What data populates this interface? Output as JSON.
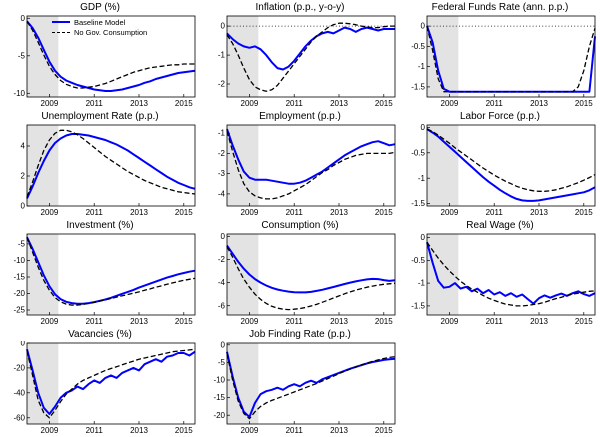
{
  "styles": {
    "baseline_color": "#0000ff",
    "counterfactual_color": "#000000",
    "band_color": "#e3e3e3",
    "axis_color": "#000000"
  },
  "legend": {
    "entries": [
      {
        "label": "Baseline Model",
        "color": "#0000ff",
        "dash": "solid"
      },
      {
        "label": "No Gov. Consumption",
        "color": "#000000",
        "dash": "dashed"
      }
    ]
  },
  "x_axis": {
    "lim": [
      2008,
      2015.5
    ],
    "ticks": [
      2009,
      2011,
      2013,
      2015
    ]
  },
  "x_quarters": [
    2008,
    2008.25,
    2008.5,
    2008.75,
    2009,
    2009.25,
    2009.5,
    2009.75,
    2010,
    2010.25,
    2010.5,
    2010.75,
    2011,
    2011.25,
    2011.5,
    2011.75,
    2012,
    2012.25,
    2012.5,
    2012.75,
    2013,
    2013.25,
    2013.5,
    2013.75,
    2014,
    2014.25,
    2014.5,
    2014.75,
    2015,
    2015.25,
    2015.5
  ],
  "chart_data": [
    {
      "type": "line",
      "id": "gdp",
      "title": "GDP (%)",
      "ylim": [
        -10.5,
        0.3
      ],
      "yticks": [
        0,
        -5,
        -10
      ],
      "zero_line": false,
      "recession_band": [
        2008,
        2009.4
      ],
      "has_legend": true,
      "series": [
        {
          "name": "Baseline Model",
          "values": [
            -0.4,
            -1.3,
            -2.6,
            -4.2,
            -5.8,
            -7.0,
            -7.8,
            -8.3,
            -8.6,
            -8.9,
            -9.1,
            -9.3,
            -9.5,
            -9.6,
            -9.7,
            -9.7,
            -9.6,
            -9.5,
            -9.3,
            -9.1,
            -8.9,
            -8.6,
            -8.4,
            -8.1,
            -7.9,
            -7.7,
            -7.5,
            -7.3,
            -7.2,
            -7.1,
            -7.0
          ]
        },
        {
          "name": "No Gov. Consumption",
          "values": [
            -0.4,
            -1.6,
            -3.2,
            -4.9,
            -6.4,
            -7.5,
            -8.3,
            -8.8,
            -9.1,
            -9.3,
            -9.3,
            -9.2,
            -9.1,
            -8.9,
            -8.7,
            -8.4,
            -8.1,
            -7.8,
            -7.5,
            -7.2,
            -7.0,
            -6.8,
            -6.6,
            -6.5,
            -6.4,
            -6.3,
            -6.2,
            -6.2,
            -6.1,
            -6.1,
            -6.1
          ]
        }
      ]
    },
    {
      "type": "line",
      "id": "inflation",
      "title": "Inflation (p.p., y-o-y)",
      "ylim": [
        -2.45,
        0.35
      ],
      "yticks": [
        0,
        -1,
        -2
      ],
      "zero_line": true,
      "recession_band": [
        2008,
        2009.4
      ],
      "has_legend": false,
      "series": [
        {
          "name": "Baseline Model",
          "values": [
            -0.25,
            -0.45,
            -0.6,
            -0.7,
            -0.75,
            -0.7,
            -0.8,
            -1.0,
            -1.25,
            -1.45,
            -1.5,
            -1.4,
            -1.2,
            -0.95,
            -0.7,
            -0.5,
            -0.35,
            -0.25,
            -0.2,
            -0.25,
            -0.15,
            -0.05,
            -0.1,
            -0.2,
            -0.1,
            -0.05,
            -0.1,
            -0.15,
            -0.1,
            -0.1,
            -0.1
          ]
        },
        {
          "name": "No Gov. Consumption",
          "values": [
            -0.3,
            -0.6,
            -1.0,
            -1.45,
            -1.85,
            -2.1,
            -2.2,
            -2.25,
            -2.2,
            -2.05,
            -1.8,
            -1.55,
            -1.3,
            -1.05,
            -0.8,
            -0.55,
            -0.35,
            -0.2,
            -0.05,
            0.05,
            0.1,
            0.1,
            0.08,
            0.05,
            0.0,
            -0.03,
            -0.05,
            -0.05,
            -0.02,
            0.0,
            0.0
          ]
        }
      ]
    },
    {
      "type": "line",
      "id": "federal-funds-rate",
      "title": "Federal Funds Rate (ann. p.p.)",
      "ylim": [
        -1.75,
        0.25
      ],
      "yticks": [
        0,
        -0.5,
        -1,
        -1.5
      ],
      "zero_line": true,
      "recession_band": [
        2008,
        2009.4
      ],
      "has_legend": false,
      "series": [
        {
          "name": "Baseline Model",
          "values": [
            0,
            -0.4,
            -1.1,
            -1.55,
            -1.62,
            -1.62,
            -1.62,
            -1.62,
            -1.62,
            -1.62,
            -1.62,
            -1.62,
            -1.62,
            -1.62,
            -1.62,
            -1.62,
            -1.62,
            -1.62,
            -1.62,
            -1.62,
            -1.62,
            -1.62,
            -1.62,
            -1.62,
            -1.62,
            -1.62,
            -1.62,
            -1.62,
            -1.62,
            -1.62,
            -0.25
          ]
        },
        {
          "name": "No Gov. Consumption",
          "values": [
            0,
            -0.6,
            -1.3,
            -1.62,
            -1.62,
            -1.62,
            -1.62,
            -1.62,
            -1.62,
            -1.62,
            -1.62,
            -1.62,
            -1.62,
            -1.62,
            -1.62,
            -1.62,
            -1.62,
            -1.62,
            -1.62,
            -1.62,
            -1.62,
            -1.62,
            -1.62,
            -1.62,
            -1.62,
            -1.62,
            -1.62,
            -1.5,
            -1.1,
            -0.5,
            -0.05
          ]
        }
      ]
    },
    {
      "type": "line",
      "id": "unemployment-rate",
      "title": "Unemployment Rate (p.p.)",
      "ylim": [
        0,
        5.4
      ],
      "yticks": [
        0,
        2,
        4
      ],
      "zero_line": false,
      "recession_band": [
        2008,
        2009.4
      ],
      "has_legend": false,
      "series": [
        {
          "name": "Baseline Model",
          "values": [
            0.5,
            1.3,
            2.2,
            3.0,
            3.7,
            4.2,
            4.5,
            4.7,
            4.8,
            4.8,
            4.75,
            4.7,
            4.6,
            4.5,
            4.4,
            4.25,
            4.1,
            3.9,
            3.7,
            3.45,
            3.2,
            2.95,
            2.7,
            2.45,
            2.2,
            1.95,
            1.75,
            1.55,
            1.4,
            1.25,
            1.15
          ]
        },
        {
          "name": "No Gov. Consumption",
          "values": [
            0.6,
            1.6,
            2.7,
            3.7,
            4.4,
            4.85,
            5.05,
            5.05,
            4.95,
            4.75,
            4.5,
            4.2,
            3.9,
            3.6,
            3.3,
            3.05,
            2.8,
            2.55,
            2.3,
            2.1,
            1.9,
            1.7,
            1.55,
            1.4,
            1.25,
            1.15,
            1.05,
            0.95,
            0.9,
            0.85,
            0.8
          ]
        }
      ]
    },
    {
      "type": "line",
      "id": "employment",
      "title": "Employment (p.p.)",
      "ylim": [
        -4.6,
        -0.6
      ],
      "yticks": [
        -1,
        -2,
        -3,
        -4
      ],
      "zero_line": false,
      "recession_band": [
        2008,
        2009.4
      ],
      "has_legend": false,
      "series": [
        {
          "name": "Baseline Model",
          "values": [
            -0.8,
            -1.6,
            -2.3,
            -2.9,
            -3.2,
            -3.3,
            -3.3,
            -3.3,
            -3.35,
            -3.4,
            -3.45,
            -3.5,
            -3.5,
            -3.45,
            -3.35,
            -3.2,
            -3.05,
            -2.9,
            -2.7,
            -2.5,
            -2.3,
            -2.1,
            -1.95,
            -1.8,
            -1.65,
            -1.55,
            -1.45,
            -1.4,
            -1.5,
            -1.6,
            -1.55
          ]
        },
        {
          "name": "No Gov. Consumption",
          "values": [
            -0.9,
            -1.9,
            -2.8,
            -3.5,
            -3.9,
            -4.1,
            -4.2,
            -4.25,
            -4.25,
            -4.2,
            -4.1,
            -4.0,
            -3.85,
            -3.7,
            -3.55,
            -3.35,
            -3.15,
            -2.95,
            -2.8,
            -2.6,
            -2.45,
            -2.3,
            -2.2,
            -2.1,
            -2.05,
            -2.0,
            -2.0,
            -2.0,
            -2.0,
            -2.0,
            -1.95
          ]
        }
      ]
    },
    {
      "type": "line",
      "id": "labor-force",
      "title": "Labor Force (p.p.)",
      "ylim": [
        -1.55,
        0.05
      ],
      "yticks": [
        0,
        -0.5,
        -1,
        -1.5
      ],
      "zero_line": false,
      "recession_band": [
        2008,
        2009.4
      ],
      "has_legend": false,
      "series": [
        {
          "name": "Baseline Model",
          "values": [
            -0.03,
            -0.1,
            -0.18,
            -0.28,
            -0.38,
            -0.48,
            -0.58,
            -0.68,
            -0.78,
            -0.88,
            -0.98,
            -1.07,
            -1.15,
            -1.23,
            -1.3,
            -1.36,
            -1.41,
            -1.44,
            -1.45,
            -1.45,
            -1.44,
            -1.42,
            -1.4,
            -1.38,
            -1.36,
            -1.34,
            -1.32,
            -1.3,
            -1.28,
            -1.24,
            -1.18
          ]
        },
        {
          "name": "No Gov. Consumption",
          "values": [
            -0.03,
            -0.08,
            -0.15,
            -0.23,
            -0.31,
            -0.4,
            -0.48,
            -0.56,
            -0.64,
            -0.72,
            -0.8,
            -0.87,
            -0.94,
            -1.0,
            -1.06,
            -1.11,
            -1.16,
            -1.2,
            -1.23,
            -1.25,
            -1.26,
            -1.26,
            -1.25,
            -1.23,
            -1.2,
            -1.17,
            -1.13,
            -1.09,
            -1.04,
            -0.99,
            -0.93
          ]
        }
      ]
    },
    {
      "type": "line",
      "id": "investment",
      "title": "Investment (%)",
      "ylim": [
        -26.5,
        -2
      ],
      "yticks": [
        -5,
        -10,
        -15,
        -20,
        -25
      ],
      "zero_line": false,
      "recession_band": [
        2008,
        2009.4
      ],
      "has_legend": false,
      "series": [
        {
          "name": "Baseline Model",
          "values": [
            -3,
            -6.5,
            -10.5,
            -14.5,
            -17.8,
            -20.2,
            -21.7,
            -22.5,
            -22.9,
            -23.1,
            -23.1,
            -22.9,
            -22.6,
            -22.2,
            -21.8,
            -21.3,
            -20.7,
            -20.1,
            -19.5,
            -18.9,
            -18.2,
            -17.6,
            -17.0,
            -16.4,
            -15.8,
            -15.2,
            -14.7,
            -14.2,
            -13.8,
            -13.4,
            -13.1
          ]
        },
        {
          "name": "No Gov. Consumption",
          "values": [
            -3,
            -7.5,
            -12,
            -16,
            -19,
            -21.2,
            -22.5,
            -23.2,
            -23.5,
            -23.5,
            -23.3,
            -23.0,
            -22.7,
            -22.3,
            -21.9,
            -21.5,
            -21.1,
            -20.7,
            -20.3,
            -19.9,
            -19.5,
            -19.0,
            -18.6,
            -18.1,
            -17.7,
            -17.2,
            -16.8,
            -16.4,
            -16.0,
            -15.7,
            -15.4
          ]
        }
      ]
    },
    {
      "type": "line",
      "id": "consumption",
      "title": "Consumption (%)",
      "ylim": [
        -6.8,
        0.2
      ],
      "yticks": [
        0,
        -2,
        -4,
        -6
      ],
      "zero_line": false,
      "recession_band": [
        2008,
        2009.4
      ],
      "has_legend": false,
      "series": [
        {
          "name": "Baseline Model",
          "values": [
            -0.8,
            -1.5,
            -2.2,
            -2.8,
            -3.3,
            -3.7,
            -4.0,
            -4.25,
            -4.45,
            -4.6,
            -4.7,
            -4.78,
            -4.83,
            -4.85,
            -4.85,
            -4.8,
            -4.72,
            -4.62,
            -4.5,
            -4.38,
            -4.25,
            -4.12,
            -4.0,
            -3.9,
            -3.8,
            -3.72,
            -3.68,
            -3.7,
            -3.78,
            -3.85,
            -3.8
          ]
        },
        {
          "name": "No Gov. Consumption",
          "values": [
            -0.9,
            -1.8,
            -2.8,
            -3.7,
            -4.4,
            -5.0,
            -5.45,
            -5.8,
            -6.05,
            -6.2,
            -6.3,
            -6.33,
            -6.3,
            -6.25,
            -6.15,
            -6.02,
            -5.88,
            -5.7,
            -5.52,
            -5.33,
            -5.15,
            -4.97,
            -4.8,
            -4.65,
            -4.52,
            -4.4,
            -4.3,
            -4.22,
            -4.15,
            -4.1,
            -4.05
          ]
        }
      ]
    },
    {
      "type": "line",
      "id": "real-wage",
      "title": "Real Wage (%)",
      "ylim": [
        -1.7,
        0.08
      ],
      "yticks": [
        0,
        -0.5,
        -1,
        -1.5
      ],
      "zero_line": false,
      "recession_band": [
        2008,
        2009.4
      ],
      "has_legend": false,
      "series": [
        {
          "name": "Baseline Model",
          "values": [
            -0.1,
            -0.55,
            -0.95,
            -1.1,
            -1.08,
            -1.0,
            -1.12,
            -1.08,
            -1.18,
            -1.12,
            -1.22,
            -1.15,
            -1.25,
            -1.2,
            -1.28,
            -1.22,
            -1.3,
            -1.25,
            -1.35,
            -1.45,
            -1.33,
            -1.27,
            -1.32,
            -1.27,
            -1.23,
            -1.28,
            -1.22,
            -1.18,
            -1.24,
            -1.28,
            -1.22
          ]
        },
        {
          "name": "No Gov. Consumption",
          "values": [
            -0.1,
            -0.28,
            -0.45,
            -0.6,
            -0.73,
            -0.85,
            -0.96,
            -1.05,
            -1.13,
            -1.2,
            -1.27,
            -1.33,
            -1.38,
            -1.42,
            -1.46,
            -1.48,
            -1.5,
            -1.5,
            -1.49,
            -1.47,
            -1.45,
            -1.42,
            -1.38,
            -1.34,
            -1.31,
            -1.27,
            -1.24,
            -1.22,
            -1.2,
            -1.18,
            -1.17
          ]
        }
      ]
    },
    {
      "type": "line",
      "id": "vacancies",
      "title": "Vacancies (%)",
      "ylim": [
        -65,
        0
      ],
      "yticks": [
        0,
        -20,
        -40,
        -60
      ],
      "zero_line": false,
      "recession_band": [
        2008,
        2009.4
      ],
      "has_legend": false,
      "series": [
        {
          "name": "Baseline Model",
          "values": [
            -5,
            -22,
            -40,
            -52,
            -57,
            -51,
            -44,
            -40,
            -38,
            -35,
            -37,
            -33,
            -30,
            -32,
            -28,
            -26,
            -28,
            -24,
            -22,
            -20,
            -22,
            -17,
            -15,
            -13,
            -15,
            -11,
            -10,
            -8,
            -8,
            -10,
            -7
          ]
        },
        {
          "name": "No Gov. Consumption",
          "values": [
            -6,
            -26,
            -46,
            -56,
            -60,
            -54,
            -47,
            -41,
            -37,
            -33,
            -30,
            -28,
            -26,
            -24,
            -22,
            -20.5,
            -19,
            -17.5,
            -16,
            -14.5,
            -13,
            -12,
            -11,
            -10,
            -9,
            -8,
            -7,
            -6.5,
            -6,
            -5.5,
            -5
          ]
        }
      ]
    },
    {
      "type": "line",
      "id": "job-finding-rate",
      "title": "Job Finding Rate (p.p.)",
      "ylim": [
        -22.5,
        0.5
      ],
      "yticks": [
        0,
        -5,
        -10,
        -15,
        -20
      ],
      "zero_line": false,
      "recession_band": [
        2008,
        2009.4
      ],
      "has_legend": false,
      "series": [
        {
          "name": "Baseline Model",
          "values": [
            -2,
            -9,
            -15,
            -19,
            -20.5,
            -16.5,
            -14,
            -13.2,
            -12.8,
            -12.2,
            -12.8,
            -11.8,
            -11.2,
            -11.8,
            -10.8,
            -10.2,
            -10.8,
            -9.8,
            -9.2,
            -8.6,
            -8.0,
            -7.4,
            -6.8,
            -6.3,
            -5.8,
            -5.3,
            -4.9,
            -4.6,
            -4.3,
            -4.1,
            -4.0
          ]
        },
        {
          "name": "No Gov. Consumption",
          "values": [
            -2.5,
            -10,
            -16,
            -19.5,
            -21,
            -19,
            -17.5,
            -16.5,
            -15.8,
            -15.2,
            -14.6,
            -14,
            -13.4,
            -12.8,
            -12.2,
            -11.6,
            -11,
            -10.3,
            -9.6,
            -8.9,
            -8.2,
            -7.5,
            -6.9,
            -6.3,
            -5.7,
            -5.2,
            -4.7,
            -4.3,
            -3.9,
            -3.6,
            -3.4
          ]
        }
      ]
    }
  ]
}
